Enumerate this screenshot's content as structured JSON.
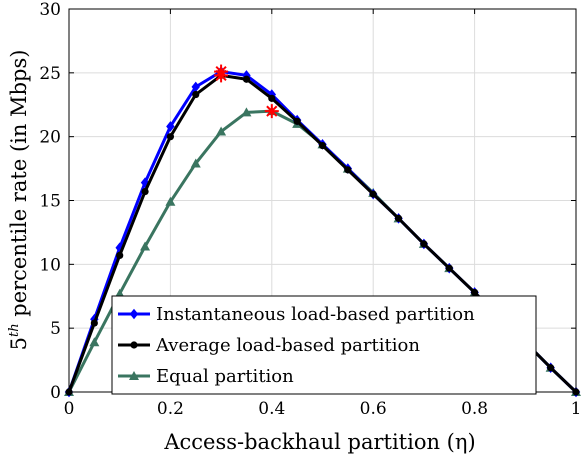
{
  "chart_data": {
    "type": "line",
    "xlabel": "Access-backhaul partition (η)",
    "ylabel": "5th percentile rate (in Mbps)",
    "ylabel_prefix": "5",
    "ylabel_sup": "th",
    "ylabel_rest": " percentile rate (in Mbps)",
    "xlim": [
      0,
      1
    ],
    "ylim": [
      0,
      30
    ],
    "x_ticks": [
      0,
      0.2,
      0.4,
      0.6,
      0.8,
      1
    ],
    "x_tick_labels": [
      "0",
      "0.2",
      "0.4",
      "0.6",
      "0.8",
      "1"
    ],
    "y_ticks": [
      0,
      5,
      10,
      15,
      20,
      25,
      30
    ],
    "y_tick_labels": [
      "0",
      "5",
      "10",
      "15",
      "20",
      "25",
      "30"
    ],
    "grid": true,
    "legend_position": "bottom-center",
    "x": [
      0,
      0.05,
      0.1,
      0.15,
      0.2,
      0.25,
      0.3,
      0.35,
      0.4,
      0.45,
      0.5,
      0.55,
      0.6,
      0.65,
      0.7,
      0.75,
      0.8,
      0.85,
      0.9,
      0.95,
      1
    ],
    "series": [
      {
        "name": "Instantaneous load-based partition",
        "color": "#0000ff",
        "marker": "diamond",
        "values": [
          0,
          5.7,
          11.3,
          16.4,
          20.8,
          23.9,
          25.1,
          24.8,
          23.3,
          21.3,
          19.4,
          17.5,
          15.5,
          13.6,
          11.6,
          9.7,
          7.8,
          5.8,
          3.9,
          1.9,
          0
        ]
      },
      {
        "name": "Average load-based partition",
        "color": "#000000",
        "marker": "circle",
        "values": [
          0,
          5.4,
          10.7,
          15.7,
          20.0,
          23.3,
          24.8,
          24.5,
          23.0,
          21.2,
          19.3,
          17.4,
          15.5,
          13.6,
          11.6,
          9.7,
          7.8,
          5.8,
          3.9,
          1.9,
          0
        ]
      },
      {
        "name": "Equal partition",
        "color": "#3a7560",
        "marker": "triangle",
        "values": [
          0,
          3.9,
          7.7,
          11.4,
          14.9,
          17.9,
          20.4,
          21.9,
          22.0,
          21.0,
          19.4,
          17.5,
          15.6,
          13.6,
          11.6,
          9.7,
          7.8,
          5.8,
          3.9,
          1.9,
          0
        ]
      }
    ],
    "optimum_markers": [
      {
        "x": 0.3,
        "y": 25.1,
        "color": "#ff0000"
      },
      {
        "x": 0.3,
        "y": 24.8,
        "color": "#ff0000"
      },
      {
        "x": 0.4,
        "y": 22.0,
        "color": "#ff0000"
      }
    ]
  }
}
